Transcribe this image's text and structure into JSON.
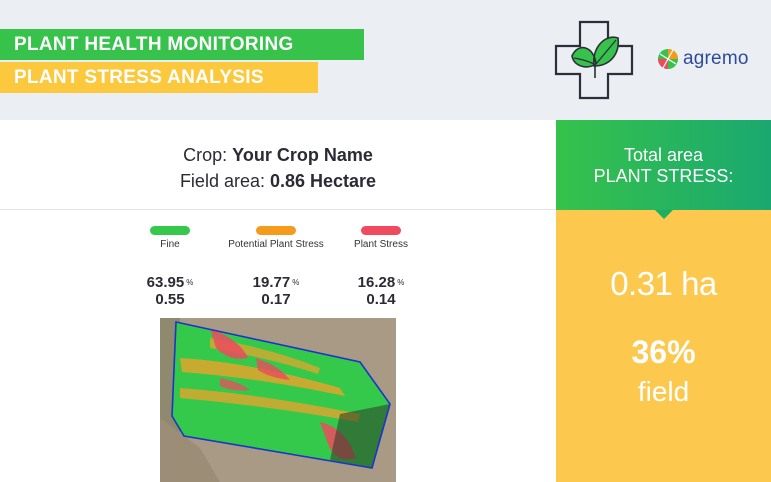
{
  "header": {
    "title": "PLANT HEALTH MONITORING",
    "subtitle": "PLANT STRESS ANALYSIS",
    "brand": "agremo",
    "icon": "plant-health-cross-icon"
  },
  "crop": {
    "crop_label": "Crop: ",
    "crop_name": "Your Crop Name",
    "area_label": "Field area: ",
    "area_value": "0.86 Hectare"
  },
  "legend": [
    {
      "label": "Fine",
      "percent": "63.95",
      "hectares": "0.55",
      "color": "#34c94b"
    },
    {
      "label": "Potential Plant Stress",
      "percent": "19.77",
      "hectares": "0.17",
      "color": "#f59b1c"
    },
    {
      "label": "Plant Stress",
      "percent": "16.28",
      "hectares": "0.14",
      "color": "#ef4a5e"
    }
  ],
  "percent_sign": "%",
  "summary": {
    "heading_line1": "Total area",
    "heading_line2": "PLANT STRESS:",
    "area": "0.31 ha",
    "percent": "36%",
    "percent_unit": "field"
  },
  "colors": {
    "banner_green": "#36c24b",
    "banner_yellow": "#fcc83e",
    "summary_yellow": "#fcc94e",
    "field_green": "#34c94b"
  }
}
